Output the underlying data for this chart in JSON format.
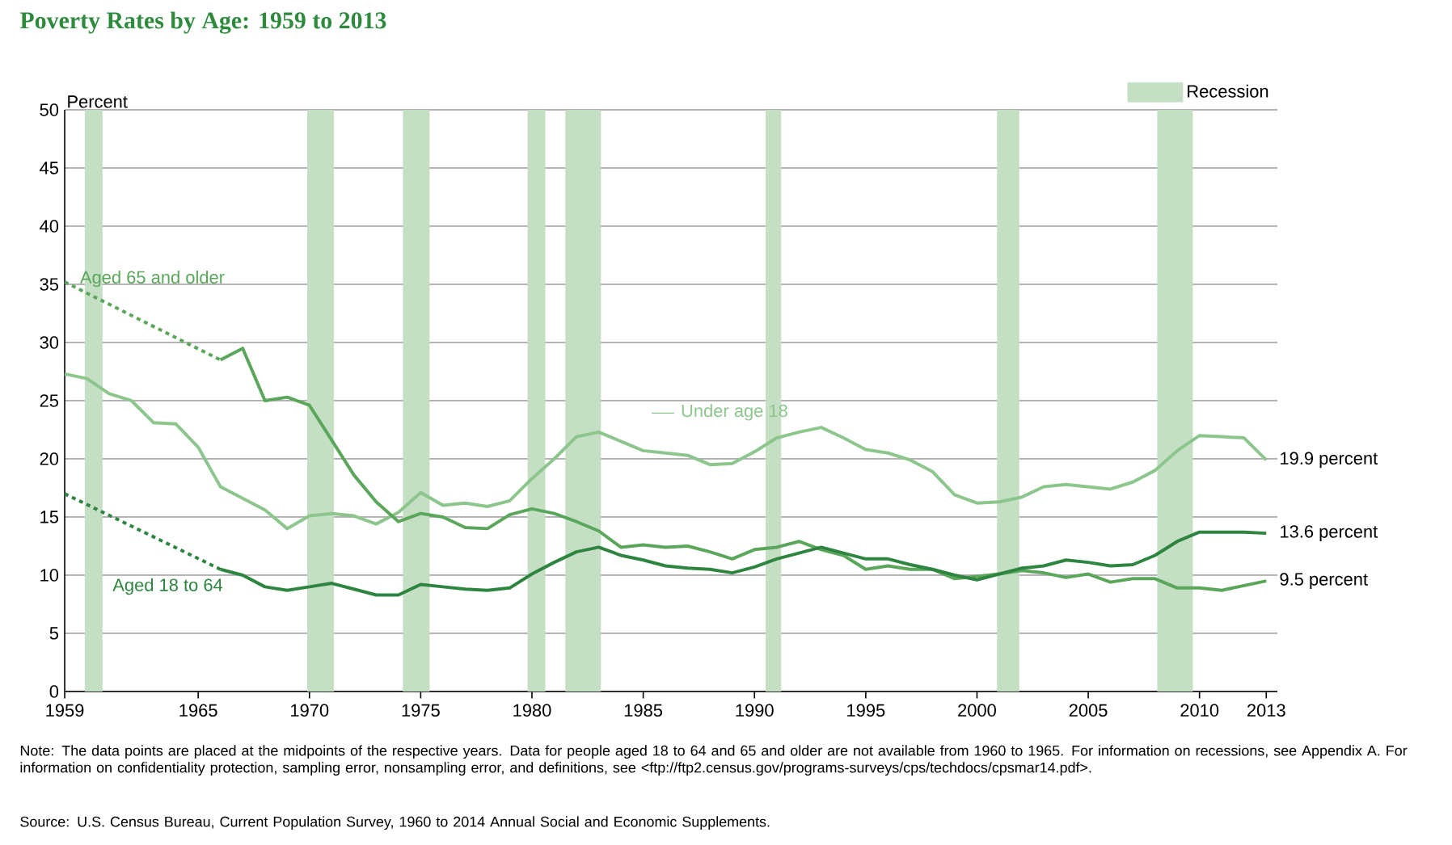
{
  "chart_data": {
    "type": "line",
    "title": "Poverty Rates by Age: 1959 to 2013",
    "ylabel": "Percent",
    "xlim": [
      1959,
      2013.5
    ],
    "xticks": [
      1959,
      1965,
      1970,
      1975,
      1980,
      1985,
      1990,
      1995,
      2000,
      2005,
      2010,
      2013
    ],
    "ylim": [
      0,
      50
    ],
    "yticks": [
      0,
      5,
      10,
      15,
      20,
      25,
      30,
      35,
      40,
      45,
      50
    ],
    "grid": "y",
    "legend": "top right",
    "marker": "none",
    "series": [
      {
        "name": "Under age 18",
        "color": "#8cc68c",
        "line_style": "solid",
        "x": [
          1959,
          1960,
          1961,
          1962,
          1963,
          1964,
          1965,
          1966,
          1967,
          1968,
          1969,
          1970,
          1971,
          1972,
          1973,
          1974,
          1975,
          1976,
          1977,
          1978,
          1979,
          1980,
          1981,
          1982,
          1983,
          1984,
          1985,
          1986,
          1987,
          1988,
          1989,
          1990,
          1991,
          1992,
          1993,
          1994,
          1995,
          1996,
          1997,
          1998,
          1999,
          2000,
          2001,
          2002,
          2003,
          2004,
          2005,
          2006,
          2007,
          2008,
          2009,
          2010,
          2011,
          2012,
          2013
        ],
        "values": [
          27.3,
          26.9,
          25.6,
          25.0,
          23.1,
          23.0,
          21.0,
          17.6,
          16.6,
          15.6,
          14.0,
          15.1,
          15.3,
          15.1,
          14.4,
          15.4,
          17.1,
          16.0,
          16.2,
          15.9,
          16.4,
          18.3,
          20.0,
          21.9,
          22.3,
          21.5,
          20.7,
          20.5,
          20.3,
          19.5,
          19.6,
          20.6,
          21.8,
          22.3,
          22.7,
          21.8,
          20.8,
          20.5,
          19.9,
          18.9,
          16.9,
          16.2,
          16.3,
          16.7,
          17.6,
          17.8,
          17.6,
          17.4,
          18.0,
          19.0,
          20.7,
          22.0,
          21.9,
          21.8,
          19.9
        ],
        "value_labels": [
          null,
          null,
          null,
          null,
          null,
          null,
          null,
          null,
          null,
          null,
          null,
          null,
          null,
          null,
          null,
          null,
          null,
          null,
          null,
          null,
          null,
          null,
          null,
          null,
          null,
          null,
          null,
          null,
          null,
          null,
          null,
          null,
          null,
          null,
          null,
          null,
          null,
          null,
          null,
          null,
          null,
          null,
          null,
          null,
          null,
          null,
          null,
          null,
          null,
          null,
          null,
          null,
          null,
          null,
          "19.9 percent"
        ]
      },
      {
        "name": "Aged 65 and older",
        "color": "#5aa65a",
        "line_style": "solid",
        "x": [
          1966,
          1967,
          1968,
          1969,
          1970,
          1971,
          1972,
          1973,
          1974,
          1975,
          1976,
          1977,
          1978,
          1979,
          1980,
          1981,
          1982,
          1983,
          1984,
          1985,
          1986,
          1987,
          1988,
          1989,
          1990,
          1991,
          1992,
          1993,
          1994,
          1995,
          1996,
          1997,
          1998,
          1999,
          2000,
          2001,
          2002,
          2003,
          2004,
          2005,
          2006,
          2007,
          2008,
          2009,
          2010,
          2011,
          2012,
          2013
        ],
        "values": [
          28.5,
          29.5,
          25.0,
          25.3,
          24.6,
          21.6,
          18.6,
          16.3,
          14.6,
          15.3,
          15.0,
          14.1,
          14.0,
          15.2,
          15.7,
          15.3,
          14.6,
          13.8,
          12.4,
          12.6,
          12.4,
          12.5,
          12.0,
          11.4,
          12.2,
          12.4,
          12.9,
          12.2,
          11.7,
          10.5,
          10.8,
          10.5,
          10.5,
          9.7,
          9.9,
          10.1,
          10.4,
          10.2,
          9.8,
          10.1,
          9.4,
          9.7,
          9.7,
          8.9,
          8.9,
          8.7,
          9.1,
          9.5
        ],
        "value_labels": [
          null,
          null,
          null,
          null,
          null,
          null,
          null,
          null,
          null,
          null,
          null,
          null,
          null,
          null,
          null,
          null,
          null,
          null,
          null,
          null,
          null,
          null,
          null,
          null,
          null,
          null,
          null,
          null,
          null,
          null,
          null,
          null,
          null,
          null,
          null,
          null,
          null,
          null,
          null,
          null,
          null,
          null,
          null,
          null,
          null,
          null,
          null,
          "9.5 percent"
        ]
      },
      {
        "color": "#5aa65a",
        "line_style": "dotted",
        "x": [
          1959,
          1966
        ],
        "values": [
          35.2,
          28.5
        ]
      },
      {
        "name": "Aged 18 to 64",
        "color": "#2e8540",
        "line_style": "solid",
        "x": [
          1966,
          1967,
          1968,
          1969,
          1970,
          1971,
          1972,
          1973,
          1974,
          1975,
          1976,
          1977,
          1978,
          1979,
          1980,
          1981,
          1982,
          1983,
          1984,
          1985,
          1986,
          1987,
          1988,
          1989,
          1990,
          1991,
          1992,
          1993,
          1994,
          1995,
          1996,
          1997,
          1998,
          1999,
          2000,
          2001,
          2002,
          2003,
          2004,
          2005,
          2006,
          2007,
          2008,
          2009,
          2010,
          2011,
          2012,
          2013
        ],
        "values": [
          10.5,
          10.0,
          9.0,
          8.7,
          9.0,
          9.3,
          8.8,
          8.3,
          8.3,
          9.2,
          9.0,
          8.8,
          8.7,
          8.9,
          10.1,
          11.1,
          12.0,
          12.4,
          11.7,
          11.3,
          10.8,
          10.6,
          10.5,
          10.2,
          10.7,
          11.4,
          11.9,
          12.4,
          11.9,
          11.4,
          11.4,
          10.9,
          10.5,
          10.0,
          9.6,
          10.1,
          10.6,
          10.8,
          11.3,
          11.1,
          10.8,
          10.9,
          11.7,
          12.9,
          13.7,
          13.7,
          13.7,
          13.6
        ],
        "value_labels": [
          null,
          null,
          null,
          null,
          null,
          null,
          null,
          null,
          null,
          null,
          null,
          null,
          null,
          null,
          null,
          null,
          null,
          null,
          null,
          null,
          null,
          null,
          null,
          null,
          null,
          null,
          null,
          null,
          null,
          null,
          null,
          null,
          null,
          null,
          null,
          null,
          null,
          null,
          null,
          null,
          null,
          null,
          null,
          null,
          null,
          null,
          null,
          "13.6 percent"
        ]
      },
      {
        "color": "#2e8540",
        "line_style": "dotted",
        "x": [
          1959,
          1966
        ],
        "values": [
          17.0,
          10.5
        ]
      }
    ],
    "bands": [
      {
        "axis": "x",
        "from": 1959.9,
        "to": 1960.7,
        "label": "Recession",
        "color": "#c5dfc5"
      },
      {
        "axis": "x",
        "from": 1969.9,
        "to": 1971.1,
        "color": "#c5dfc5"
      },
      {
        "axis": "x",
        "from": 1974.2,
        "to": 1975.4,
        "color": "#c5dfc5"
      },
      {
        "axis": "x",
        "from": 1979.8,
        "to": 1980.6,
        "color": "#c5dfc5"
      },
      {
        "axis": "x",
        "from": 1981.5,
        "to": 1983.1,
        "color": "#c5dfc5"
      },
      {
        "axis": "x",
        "from": 1990.5,
        "to": 1991.2,
        "color": "#c5dfc5"
      },
      {
        "axis": "x",
        "from": 2000.9,
        "to": 2001.9,
        "color": "#c5dfc5"
      },
      {
        "axis": "x",
        "from": 2008.1,
        "to": 2009.7,
        "color": "#c5dfc5"
      }
    ],
    "annotations": [
      "Note: The data points are placed at the midpoints of the respective years. Data for people aged 18 to 64 and 65 and older are not available from 1960 to 1965. For information on recessions, see Appendix A.  For information on confidentiality protection, sampling error, nonsampling error, and definitions, see <ftp://ftp2.census.gov/programs-surveys/cps/techdocs/cpsmar14.pdf>.",
      "Source: U.S. Census Bureau, Current Population Survey, 1960 to 2014 Annual Social and Economic Supplements."
    ]
  }
}
